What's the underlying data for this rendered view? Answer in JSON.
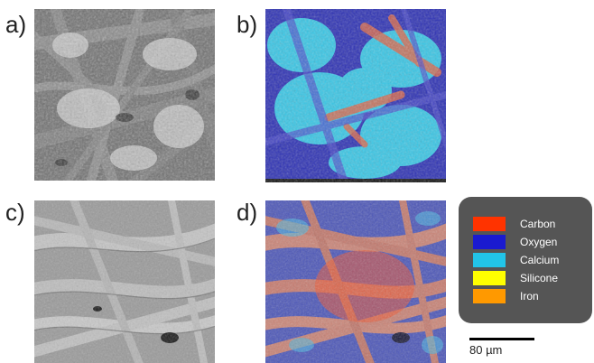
{
  "panels": [
    {
      "label": "a)",
      "kind": "sem"
    },
    {
      "label": "b)",
      "kind": "eds"
    },
    {
      "label": "c)",
      "kind": "sem"
    },
    {
      "label": "d)",
      "kind": "eds"
    }
  ],
  "legend": {
    "items": [
      {
        "label": "Carbon",
        "color": "#ff3300"
      },
      {
        "label": "Oxygen",
        "color": "#1a1ad0"
      },
      {
        "label": "Calcium",
        "color": "#22c4e8"
      },
      {
        "label": "Silicone",
        "color": "#ffff00"
      },
      {
        "label": "Iron",
        "color": "#ff9900"
      }
    ]
  },
  "scale_bar": {
    "label": "80 µm"
  }
}
